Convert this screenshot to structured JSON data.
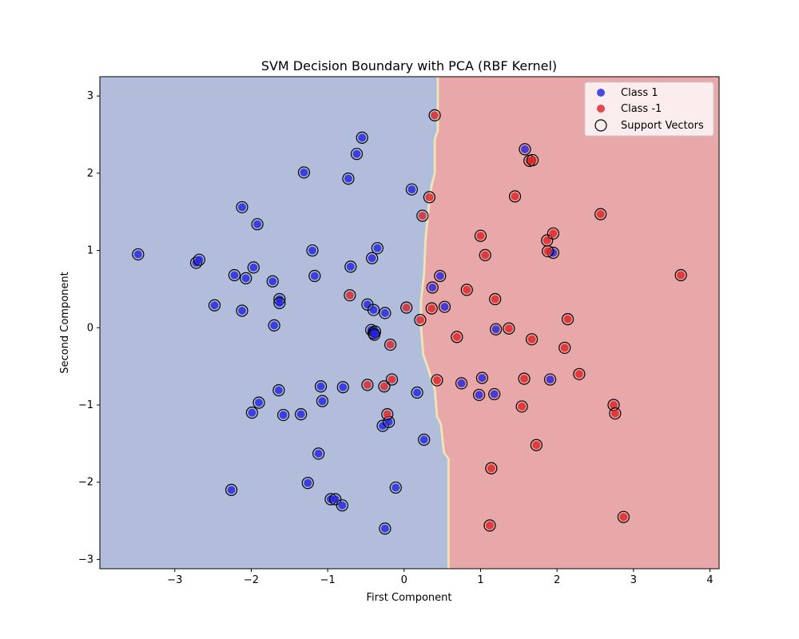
{
  "chart_data": {
    "type": "scatter",
    "title": "SVM Decision Boundary with PCA (RBF Kernel)",
    "xlabel": "First Component",
    "ylabel": "Second Component",
    "xlim": [
      -3.98,
      4.12
    ],
    "ylim": [
      -3.12,
      3.25
    ],
    "xticks": [
      -3,
      -2,
      -1,
      0,
      1,
      2,
      3,
      4
    ],
    "yticks": [
      -3,
      -2,
      -1,
      0,
      1,
      2,
      3
    ],
    "grid": false,
    "legend_position": "top-right",
    "colors": {
      "class1": "#1f1fe0",
      "class_neg1": "#e01f1f",
      "region_class1": "#b1bddb",
      "region_class_neg1": "#e8a7a8",
      "boundary_edge": "#f3e1b8"
    },
    "decision_boundary": [
      [
        0.58,
        -3.12
      ],
      [
        0.58,
        -1.7
      ],
      [
        0.52,
        -1.62
      ],
      [
        0.48,
        -1.25
      ],
      [
        0.43,
        -1.15
      ],
      [
        0.4,
        -0.8
      ],
      [
        0.32,
        -0.55
      ],
      [
        0.25,
        -0.35
      ],
      [
        0.22,
        0.0
      ],
      [
        0.22,
        0.35
      ],
      [
        0.26,
        0.7
      ],
      [
        0.28,
        1.15
      ],
      [
        0.32,
        1.55
      ],
      [
        0.36,
        1.85
      ],
      [
        0.4,
        2.0
      ],
      [
        0.4,
        2.45
      ],
      [
        0.44,
        2.55
      ],
      [
        0.44,
        3.25
      ]
    ],
    "series": [
      {
        "name": "Class 1",
        "points": [
          [
            -3.48,
            0.95
          ],
          [
            -2.72,
            0.84
          ],
          [
            -2.68,
            0.88
          ],
          [
            -2.48,
            0.29
          ],
          [
            -2.22,
            0.68
          ],
          [
            -2.12,
            1.56
          ],
          [
            -2.12,
            0.22
          ],
          [
            -2.07,
            0.64
          ],
          [
            -1.97,
            0.78
          ],
          [
            -1.92,
            1.34
          ],
          [
            -1.72,
            0.6
          ],
          [
            -1.7,
            0.03
          ],
          [
            -1.63,
            0.37
          ],
          [
            -1.63,
            0.32
          ],
          [
            -1.31,
            2.01
          ],
          [
            -1.2,
            1.0
          ],
          [
            -1.17,
            0.67
          ],
          [
            -0.73,
            1.93
          ],
          [
            -0.7,
            0.79
          ],
          [
            -0.62,
            2.25
          ],
          [
            -0.55,
            2.46
          ],
          [
            -0.48,
            0.3
          ],
          [
            -0.42,
            0.9
          ],
          [
            -0.4,
            0.23
          ],
          [
            -0.35,
            1.03
          ],
          [
            -0.25,
            0.19
          ],
          [
            0.1,
            1.79
          ],
          [
            0.37,
            0.52
          ],
          [
            0.47,
            0.67
          ],
          [
            0.53,
            0.27
          ],
          [
            -0.43,
            -0.03
          ],
          [
            -0.4,
            -0.07
          ],
          [
            -0.38,
            -0.05
          ],
          [
            -0.39,
            -0.09
          ],
          [
            -2.26,
            -2.1
          ],
          [
            -1.99,
            -1.1
          ],
          [
            -1.9,
            -0.97
          ],
          [
            -1.64,
            -0.81
          ],
          [
            -1.58,
            -1.13
          ],
          [
            -1.35,
            -1.12
          ],
          [
            -1.26,
            -2.01
          ],
          [
            -1.12,
            -1.63
          ],
          [
            -1.09,
            -0.76
          ],
          [
            -1.07,
            -0.95
          ],
          [
            -0.96,
            -2.22
          ],
          [
            -0.9,
            -2.22
          ],
          [
            -0.81,
            -2.3
          ],
          [
            -0.8,
            -0.77
          ],
          [
            -0.28,
            -1.27
          ],
          [
            -0.2,
            -1.22
          ],
          [
            -0.25,
            -2.6
          ],
          [
            -0.11,
            -2.07
          ],
          [
            0.17,
            -0.84
          ],
          [
            0.26,
            -1.45
          ],
          [
            0.75,
            -0.72
          ],
          [
            0.98,
            -0.87
          ],
          [
            1.02,
            -0.65
          ],
          [
            1.18,
            -0.86
          ],
          [
            1.2,
            -0.02
          ],
          [
            1.58,
            2.31
          ],
          [
            1.91,
            -0.67
          ],
          [
            1.95,
            0.97
          ]
        ]
      },
      {
        "name": "Class -1",
        "points": [
          [
            0.4,
            2.75
          ],
          [
            0.33,
            1.69
          ],
          [
            0.24,
            1.45
          ],
          [
            0.03,
            0.26
          ],
          [
            0.21,
            0.1
          ],
          [
            0.36,
            0.25
          ],
          [
            -0.18,
            -0.22
          ],
          [
            -0.16,
            -0.67
          ],
          [
            -0.26,
            -0.76
          ],
          [
            -0.48,
            -0.74
          ],
          [
            -0.22,
            -1.12
          ],
          [
            -0.71,
            0.42
          ],
          [
            0.43,
            -0.68
          ],
          [
            0.69,
            -0.12
          ],
          [
            0.82,
            0.49
          ],
          [
            1.0,
            1.19
          ],
          [
            1.06,
            0.94
          ],
          [
            1.19,
            0.37
          ],
          [
            1.37,
            -0.01
          ],
          [
            1.45,
            1.7
          ],
          [
            1.54,
            -1.02
          ],
          [
            1.57,
            -0.66
          ],
          [
            1.64,
            2.16
          ],
          [
            1.68,
            2.17
          ],
          [
            1.67,
            -0.15
          ],
          [
            1.73,
            -1.52
          ],
          [
            1.87,
            1.13
          ],
          [
            1.88,
            0.99
          ],
          [
            1.95,
            1.22
          ],
          [
            2.1,
            -0.26
          ],
          [
            2.14,
            0.11
          ],
          [
            2.29,
            -0.6
          ],
          [
            2.57,
            1.47
          ],
          [
            2.74,
            -1.0
          ],
          [
            2.76,
            -1.11
          ],
          [
            2.87,
            -2.45
          ],
          [
            3.62,
            0.68
          ],
          [
            1.14,
            -1.82
          ],
          [
            1.12,
            -2.56
          ]
        ]
      }
    ],
    "support_vectors_label": "Support Vectors"
  }
}
